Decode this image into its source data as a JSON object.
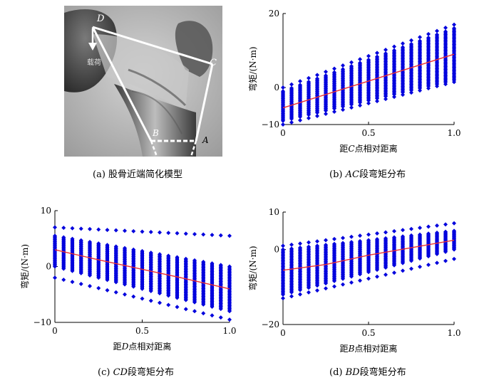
{
  "panel_a": {
    "caption": "(a) 股骨近端简化模型",
    "labels": {
      "D": "D",
      "C": "C",
      "B": "B",
      "A": "A",
      "force": "载荷"
    }
  },
  "chart_data": [
    {
      "id": "b",
      "type": "scatter",
      "caption_prefix": "(b) ",
      "caption_italic": "AC",
      "caption_suffix": "段弯矩分布",
      "xlabel_prefix": "距",
      "xlabel_italic": "C",
      "xlabel_suffix": "点相对距离",
      "ylabel": "弯矩/(N·m)",
      "xlim": [
        0,
        1
      ],
      "ylim": [
        -10,
        20
      ],
      "xticks": [
        "0",
        "0.5",
        "1.0"
      ],
      "xtick_values": [
        0,
        0.5,
        1
      ],
      "yticks": [
        "20",
        "0",
        "−10"
      ],
      "ytick_values": [
        20,
        0,
        -10
      ],
      "mean_line": {
        "x": [
          0,
          1
        ],
        "y": [
          -5.5,
          9
        ]
      },
      "spread": {
        "x": [
          0,
          1
        ],
        "lower": [
          -9,
          2
        ],
        "upper": [
          -1,
          16
        ]
      },
      "outliers": {
        "x": [
          0,
          1
        ],
        "lower": [
          -10,
          1.5
        ],
        "upper": [
          0,
          17
        ]
      }
    },
    {
      "id": "c",
      "type": "scatter",
      "caption_prefix": "(c) ",
      "caption_italic": "CD",
      "caption_suffix": "段弯矩分布",
      "xlabel_prefix": "距",
      "xlabel_italic": "D",
      "xlabel_suffix": "点相对距离",
      "ylabel": "弯矩/(N·m)",
      "xlim": [
        0,
        1
      ],
      "ylim": [
        -10,
        10
      ],
      "xticks": [
        "0",
        "0.5",
        "1.0"
      ],
      "xtick_values": [
        0,
        0.5,
        1
      ],
      "yticks": [
        "10",
        "0",
        "−10"
      ],
      "ytick_values": [
        10,
        0,
        -10
      ],
      "mean_line": {
        "x": [
          0,
          0.25,
          0.5,
          0.75,
          1
        ],
        "y": [
          3,
          1.2,
          -0.5,
          -2.2,
          -4
        ]
      },
      "spread": {
        "x": [
          0,
          1
        ],
        "lower": [
          0,
          -8
        ],
        "upper": [
          5.5,
          0
        ]
      },
      "outliers": {
        "x": [
          0,
          1
        ],
        "lower": [
          -2,
          -9.5
        ],
        "upper": [
          7,
          5.5
        ]
      }
    },
    {
      "id": "d",
      "type": "scatter",
      "caption_prefix": "(d) ",
      "caption_italic": "BD",
      "caption_suffix": "段弯矩分布",
      "xlabel_prefix": "距",
      "xlabel_italic": "B",
      "xlabel_suffix": "点相对距离",
      "ylabel": "弯矩/(N·m)",
      "xlim": [
        0,
        1
      ],
      "ylim": [
        -20,
        10
      ],
      "xticks": [
        "0",
        "0.5",
        "1.0"
      ],
      "xtick_values": [
        0,
        0.5,
        1
      ],
      "yticks": [
        "10",
        "0",
        "−20"
      ],
      "ytick_values": [
        10,
        0,
        -20
      ],
      "mean_line": {
        "x": [
          0,
          0.25,
          0.5,
          0.75,
          1
        ],
        "y": [
          -5.5,
          -4,
          -1.5,
          0.5,
          2.5
        ]
      },
      "spread": {
        "x": [
          0,
          1
        ],
        "lower": [
          -12,
          0
        ],
        "upper": [
          0,
          5
        ]
      },
      "outliers": {
        "x": [
          0,
          1
        ],
        "lower": [
          -13,
          -2.5
        ],
        "upper": [
          1,
          7
        ]
      }
    }
  ],
  "colors": {
    "marker": "#0000dd",
    "mean_line": "#ee3333",
    "axis": "#000000"
  }
}
